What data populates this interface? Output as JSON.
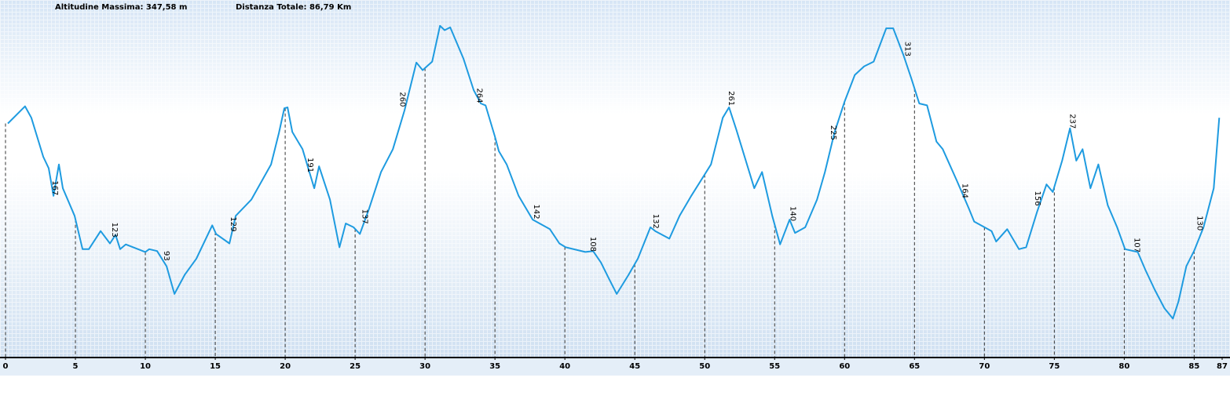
{
  "chart_data": {
    "type": "line",
    "max_altitude_label": "Altitudine Massima: 347,58 m",
    "total_distance_label": "Distanza Totale: 86,79 Km",
    "color": "#1e9be0",
    "x": [
      0.17,
      1.4,
      1.85,
      2.7,
      3.09,
      3.43,
      3.82,
      4.1,
      4.94,
      5.51,
      5.96,
      6.8,
      7.47,
      7.87,
      8.2,
      8.6,
      10.0,
      10.28,
      10.84,
      11.52,
      12.08,
      12.81,
      13.65,
      14.78,
      15.06,
      16.01,
      16.46,
      17.58,
      18.99,
      19.55,
      19.94,
      20.17,
      20.51,
      21.24,
      22.08,
      22.42,
      23.2,
      23.88,
      24.33,
      24.89,
      25.34,
      26.01,
      26.85,
      27.7,
      28.54,
      29.38,
      29.83,
      30.51,
      31.07,
      31.4,
      31.8,
      32.75,
      33.48,
      33.99,
      34.33,
      35.0,
      35.28,
      35.84,
      36.69,
      37.7,
      38.93,
      39.61,
      40.06,
      41.46,
      42.02,
      42.58,
      43.15,
      43.71,
      44.55,
      45.22,
      46.12,
      46.46,
      47.47,
      48.2,
      49.04,
      50.45,
      51.29,
      51.74,
      52.25,
      53.54,
      54.1,
      54.83,
      55.39,
      56.07,
      56.46,
      57.19,
      58.03,
      58.6,
      59.27,
      60.0,
      60.73,
      61.4,
      62.08,
      62.98,
      63.48,
      64.21,
      64.78,
      65.34,
      65.9,
      66.57,
      67.02,
      68.03,
      68.88,
      69.27,
      70.51,
      70.84,
      71.63,
      72.47,
      72.98,
      73.76,
      74.44,
      74.89,
      75.56,
      76.12,
      76.57,
      77.02,
      77.58,
      78.15,
      78.82,
      79.49,
      80.06,
      80.96,
      81.52,
      82.19,
      82.87,
      83.48,
      83.88,
      84.44,
      84.99,
      85.67,
      86.4,
      86.79
    ],
    "values": [
      245,
      263,
      251,
      210,
      198,
      169,
      202,
      177,
      148,
      113,
      113,
      132,
      119,
      128,
      113,
      118,
      110,
      113,
      111,
      95,
      66,
      86,
      103,
      138,
      129,
      119,
      148,
      165,
      202,
      235,
      261,
      262,
      236,
      218,
      177,
      200,
      165,
      115,
      140,
      136,
      129,
      156,
      194,
      218,
      259,
      309,
      301,
      310,
      347.58,
      343,
      346,
      313,
      280,
      266,
      264,
      231,
      216,
      202,
      169,
      144,
      134,
      119,
      115,
      110,
      111,
      99,
      82,
      66,
      86,
      103,
      136,
      132,
      124,
      148,
      169,
      202,
      251,
      262,
      239,
      177,
      194,
      148,
      118,
      144,
      130,
      136,
      165,
      194,
      235,
      268,
      296,
      305,
      310,
      345,
      345,
      317,
      292,
      266,
      264,
      226,
      218,
      185,
      156,
      142,
      132,
      121,
      134,
      113,
      115,
      152,
      181,
      173,
      206,
      240,
      206,
      218,
      177,
      202,
      159,
      136,
      113,
      110,
      91,
      70,
      51,
      40,
      58,
      95,
      111,
      136,
      177,
      251
    ],
    "xlim": [
      0,
      87
    ],
    "xticks": [
      0,
      5,
      10,
      15,
      20,
      25,
      30,
      35,
      40,
      45,
      50,
      55,
      60,
      65,
      70,
      75,
      80,
      85,
      87
    ],
    "ylim": [
      0,
      350
    ],
    "markers": [
      {
        "x": 3.54,
        "value": 167
      },
      {
        "x": 7.81,
        "value": 123
      },
      {
        "x": 11.52,
        "value": 93
      },
      {
        "x": 16.29,
        "value": 129
      },
      {
        "x": 21.8,
        "value": 191
      },
      {
        "x": 25.7,
        "value": 137
      },
      {
        "x": 28.4,
        "value": 260
      },
      {
        "x": 33.9,
        "value": 264
      },
      {
        "x": 37.98,
        "value": 142
      },
      {
        "x": 42.0,
        "value": 108
      },
      {
        "x": 46.5,
        "value": 132
      },
      {
        "x": 51.9,
        "value": 261
      },
      {
        "x": 56.3,
        "value": 140
      },
      {
        "x": 59.2,
        "value": 225
      },
      {
        "x": 64.5,
        "value": 313
      },
      {
        "x": 68.6,
        "value": 164
      },
      {
        "x": 73.8,
        "value": 156
      },
      {
        "x": 76.3,
        "value": 237
      },
      {
        "x": 80.9,
        "value": 107
      },
      {
        "x": 85.4,
        "value": 130
      }
    ]
  }
}
